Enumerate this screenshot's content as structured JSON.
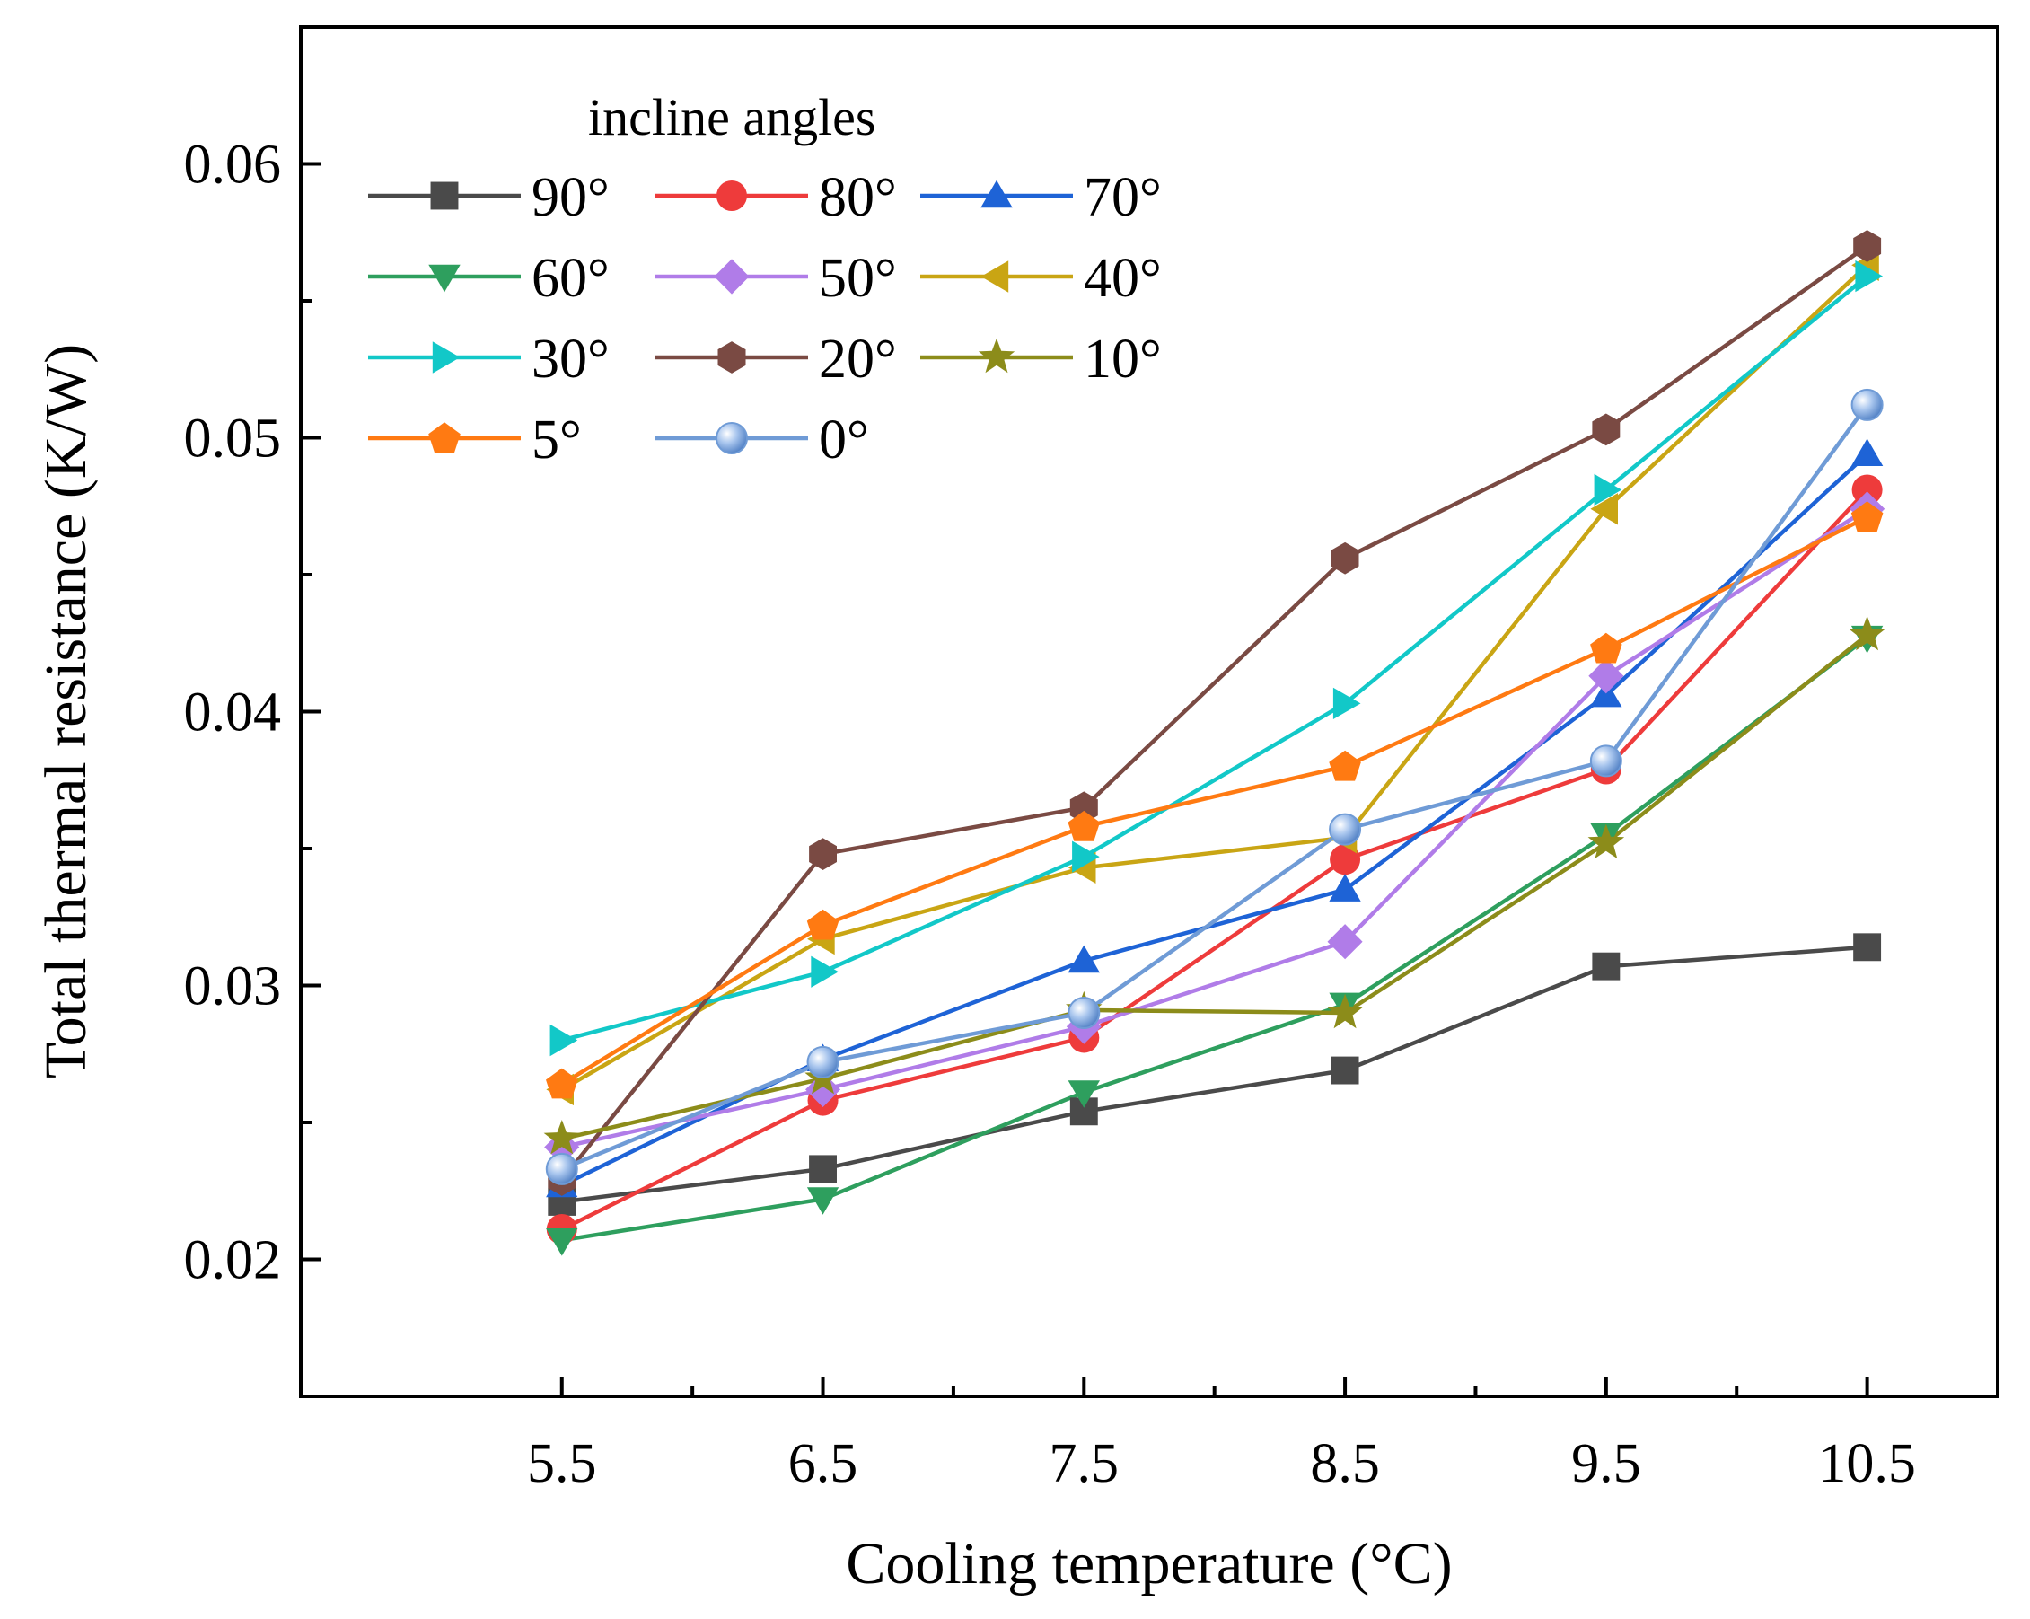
{
  "chart_data": {
    "type": "line",
    "title": "",
    "xlabel": "Cooling temperature (°C)",
    "ylabel": "Total thermal resistance (K/W)",
    "x": [
      5.5,
      6.5,
      7.5,
      8.5,
      9.5,
      10.5
    ],
    "x_tick_labels": [
      "5.5",
      "6.5",
      "7.5",
      "8.5",
      "9.5",
      "10.5"
    ],
    "xlim": [
      4.5,
      11.0
    ],
    "ylim": [
      0.015,
      0.065
    ],
    "y_ticks": [
      0.02,
      0.03,
      0.04,
      0.05,
      0.06
    ],
    "y_tick_labels": [
      "0.02",
      "0.03",
      "0.04",
      "0.05",
      "0.06"
    ],
    "grid": false,
    "legend": {
      "title": "incline angles",
      "position": "top-left",
      "columns": 3
    },
    "series": [
      {
        "name": "90°",
        "color": "#4a4a4a",
        "marker": "square",
        "values": [
          0.0221,
          0.0233,
          0.0254,
          0.0269,
          0.0307,
          0.0314
        ]
      },
      {
        "name": "80°",
        "color": "#ee3b3b",
        "marker": "circle",
        "values": [
          0.0211,
          0.0258,
          0.0281,
          0.0346,
          0.0379,
          0.0481
        ]
      },
      {
        "name": "70°",
        "color": "#1e63d6",
        "marker": "triangle-up",
        "values": [
          0.0227,
          0.0273,
          0.0309,
          0.0335,
          0.0406,
          0.0494
        ]
      },
      {
        "name": "60°",
        "color": "#2e9f5e",
        "marker": "triangle-down",
        "values": [
          0.0207,
          0.0222,
          0.0261,
          0.0293,
          0.0355,
          0.0427
        ]
      },
      {
        "name": "50°",
        "color": "#b07ce8",
        "marker": "diamond",
        "values": [
          0.0241,
          0.0262,
          0.0285,
          0.0316,
          0.0413,
          0.0474
        ]
      },
      {
        "name": "40°",
        "color": "#c9a514",
        "marker": "triangle-left",
        "values": [
          0.0262,
          0.0317,
          0.0343,
          0.0354,
          0.0474,
          0.0563
        ]
      },
      {
        "name": "30°",
        "color": "#12c8c8",
        "marker": "triangle-right",
        "values": [
          0.028,
          0.0305,
          0.0347,
          0.0403,
          0.0481,
          0.0559
        ]
      },
      {
        "name": "20°",
        "color": "#7a4a43",
        "marker": "hexagon",
        "values": [
          0.0229,
          0.0348,
          0.0365,
          0.0456,
          0.0503,
          0.057
        ]
      },
      {
        "name": "10°",
        "color": "#8c8c1a",
        "marker": "star",
        "values": [
          0.0244,
          0.0266,
          0.0291,
          0.029,
          0.0352,
          0.0428
        ]
      },
      {
        "name": "5°",
        "color": "#ff7a12",
        "marker": "pentagon",
        "values": [
          0.0264,
          0.0322,
          0.0358,
          0.038,
          0.0423,
          0.0471
        ]
      },
      {
        "name": "0°",
        "color": "#6f9bd6",
        "marker": "ball",
        "values": [
          0.0233,
          0.0272,
          0.029,
          0.0357,
          0.0382,
          0.0512
        ]
      }
    ]
  }
}
